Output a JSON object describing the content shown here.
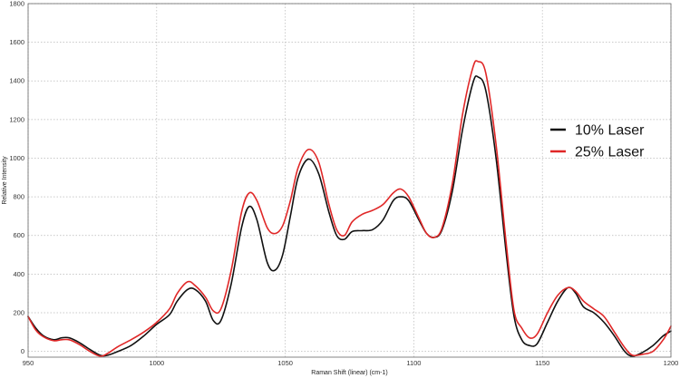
{
  "chart_data": {
    "type": "line",
    "title": "",
    "xlabel": "Raman Shift (linear) (cm-1)",
    "ylabel": "Relative Intensity",
    "xlim": [
      950,
      1200
    ],
    "ylim": [
      -30,
      1800
    ],
    "x_ticks": [
      950,
      1000,
      1050,
      1100,
      1150,
      1200
    ],
    "y_ticks": [
      0,
      200,
      400,
      600,
      800,
      1000,
      1200,
      1400,
      1600,
      1800
    ],
    "grid": true,
    "legend_position": "right",
    "series": [
      {
        "name": "10% Laser",
        "color": "#111111",
        "points": [
          [
            950,
            180
          ],
          [
            953,
            120
          ],
          [
            956,
            80
          ],
          [
            960,
            60
          ],
          [
            963,
            70
          ],
          [
            966,
            70
          ],
          [
            970,
            45
          ],
          [
            974,
            10
          ],
          [
            978,
            -20
          ],
          [
            981,
            -20
          ],
          [
            985,
            0
          ],
          [
            990,
            30
          ],
          [
            995,
            80
          ],
          [
            1000,
            140
          ],
          [
            1005,
            190
          ],
          [
            1008,
            260
          ],
          [
            1012,
            320
          ],
          [
            1015,
            320
          ],
          [
            1019,
            260
          ],
          [
            1022,
            160
          ],
          [
            1025,
            160
          ],
          [
            1029,
            350
          ],
          [
            1033,
            640
          ],
          [
            1036,
            750
          ],
          [
            1039,
            680
          ],
          [
            1043,
            460
          ],
          [
            1046,
            420
          ],
          [
            1049,
            500
          ],
          [
            1052,
            700
          ],
          [
            1055,
            900
          ],
          [
            1059,
            995
          ],
          [
            1063,
            920
          ],
          [
            1067,
            720
          ],
          [
            1070,
            600
          ],
          [
            1073,
            580
          ],
          [
            1076,
            620
          ],
          [
            1080,
            625
          ],
          [
            1084,
            630
          ],
          [
            1088,
            680
          ],
          [
            1092,
            780
          ],
          [
            1095,
            800
          ],
          [
            1098,
            780
          ],
          [
            1102,
            680
          ],
          [
            1105,
            610
          ],
          [
            1108,
            590
          ],
          [
            1111,
            630
          ],
          [
            1115,
            830
          ],
          [
            1119,
            1150
          ],
          [
            1123,
            1390
          ],
          [
            1125,
            1420
          ],
          [
            1128,
            1350
          ],
          [
            1132,
            1000
          ],
          [
            1136,
            500
          ],
          [
            1139,
            180
          ],
          [
            1142,
            60
          ],
          [
            1145,
            30
          ],
          [
            1148,
            40
          ],
          [
            1152,
            150
          ],
          [
            1156,
            260
          ],
          [
            1160,
            330
          ],
          [
            1163,
            300
          ],
          [
            1166,
            230
          ],
          [
            1170,
            200
          ],
          [
            1174,
            150
          ],
          [
            1178,
            80
          ],
          [
            1182,
            0
          ],
          [
            1185,
            -25
          ],
          [
            1189,
            -5
          ],
          [
            1193,
            30
          ],
          [
            1197,
            80
          ],
          [
            1200,
            105
          ]
        ]
      },
      {
        "name": "25% Laser",
        "color": "#e02727",
        "points": [
          [
            950,
            180
          ],
          [
            953,
            110
          ],
          [
            956,
            75
          ],
          [
            960,
            55
          ],
          [
            963,
            60
          ],
          [
            966,
            60
          ],
          [
            970,
            35
          ],
          [
            974,
            0
          ],
          [
            978,
            -25
          ],
          [
            981,
            -10
          ],
          [
            985,
            25
          ],
          [
            990,
            60
          ],
          [
            995,
            100
          ],
          [
            1000,
            150
          ],
          [
            1005,
            220
          ],
          [
            1008,
            300
          ],
          [
            1012,
            360
          ],
          [
            1015,
            340
          ],
          [
            1019,
            280
          ],
          [
            1022,
            210
          ],
          [
            1025,
            220
          ],
          [
            1029,
            420
          ],
          [
            1033,
            720
          ],
          [
            1036,
            820
          ],
          [
            1039,
            780
          ],
          [
            1043,
            640
          ],
          [
            1046,
            610
          ],
          [
            1049,
            650
          ],
          [
            1052,
            780
          ],
          [
            1055,
            950
          ],
          [
            1059,
            1045
          ],
          [
            1063,
            980
          ],
          [
            1067,
            760
          ],
          [
            1070,
            630
          ],
          [
            1073,
            600
          ],
          [
            1076,
            670
          ],
          [
            1080,
            710
          ],
          [
            1084,
            730
          ],
          [
            1088,
            760
          ],
          [
            1092,
            820
          ],
          [
            1095,
            840
          ],
          [
            1098,
            800
          ],
          [
            1102,
            690
          ],
          [
            1105,
            610
          ],
          [
            1108,
            590
          ],
          [
            1111,
            640
          ],
          [
            1115,
            870
          ],
          [
            1119,
            1230
          ],
          [
            1123,
            1470
          ],
          [
            1125,
            1500
          ],
          [
            1128,
            1440
          ],
          [
            1132,
            1070
          ],
          [
            1136,
            550
          ],
          [
            1139,
            210
          ],
          [
            1142,
            120
          ],
          [
            1145,
            70
          ],
          [
            1148,
            90
          ],
          [
            1152,
            200
          ],
          [
            1156,
            290
          ],
          [
            1160,
            330
          ],
          [
            1163,
            310
          ],
          [
            1166,
            260
          ],
          [
            1170,
            220
          ],
          [
            1174,
            180
          ],
          [
            1178,
            100
          ],
          [
            1182,
            20
          ],
          [
            1185,
            -20
          ],
          [
            1189,
            -15
          ],
          [
            1193,
            0
          ],
          [
            1197,
            60
          ],
          [
            1200,
            130
          ]
        ]
      }
    ]
  }
}
